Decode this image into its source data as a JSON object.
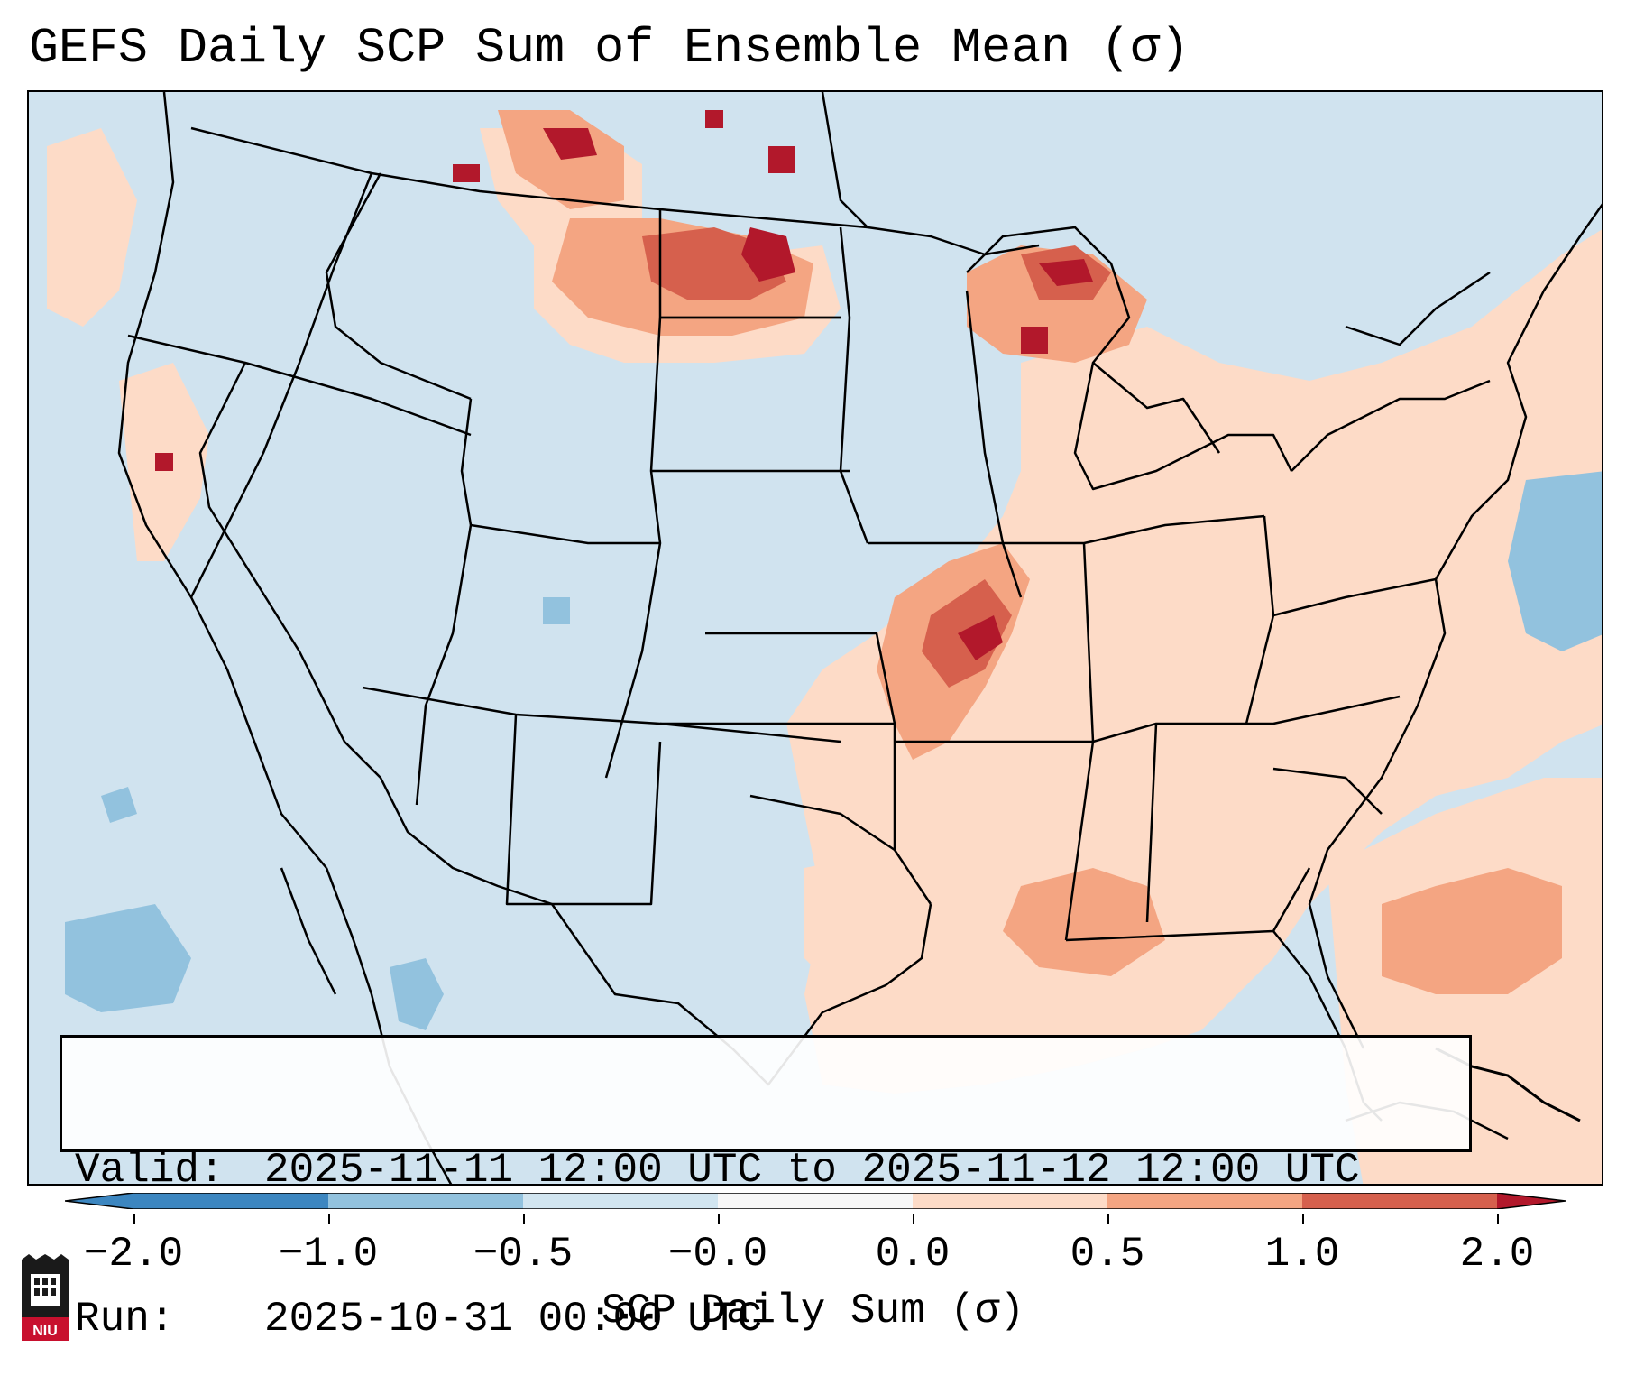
{
  "title": "GEFS Daily SCP Sum of Ensemble Mean (σ)",
  "valid_label": "Valid:",
  "valid_value": "2025-11-11 12:00 UTC to 2025-11-12 12:00 UTC",
  "run_label": "Run:",
  "run_value": "2025-10-31 00:00 UTC",
  "colorbar": {
    "label": "SCP Daily Sum (σ)",
    "ticks": [
      "−2.0",
      "−1.0",
      "−0.5",
      "−0.0",
      "0.0",
      "0.5",
      "1.0",
      "2.0"
    ],
    "colors": [
      "#3c86c0",
      "#92c2de",
      "#d1e5f0",
      "#f7f7f7",
      "#fddbc7",
      "#f4a582",
      "#d6604d",
      "#b2182b"
    ],
    "bounds": [
      -2.0,
      -1.0,
      -0.5,
      0.0,
      0.0,
      0.5,
      1.0,
      2.0
    ]
  },
  "colors": {
    "ocean_background": "#d0e3ef",
    "positive_light": "#fddbc7",
    "positive_mid": "#f4a582",
    "positive_high": "#d6604d",
    "positive_max": "#b2182b",
    "negative_light": "#92c2de"
  },
  "logo": {
    "name": "niu-logo",
    "text": "NIU"
  }
}
